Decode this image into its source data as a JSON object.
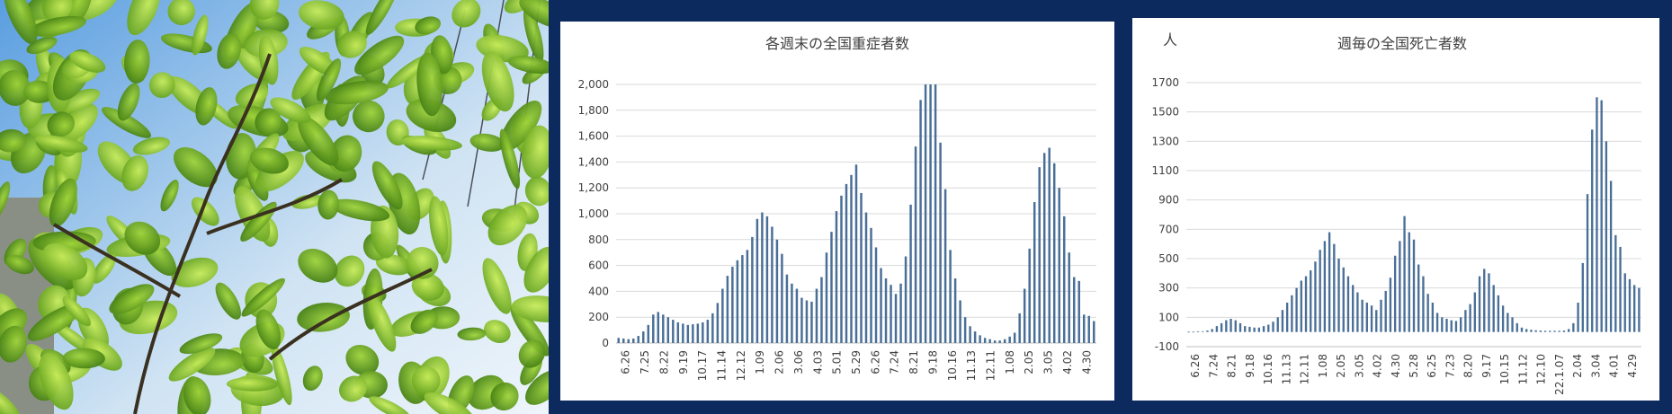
{
  "photo": {
    "label": "green-leaves-photo"
  },
  "chart_data": [
    {
      "type": "bar",
      "title": "各週末の全国重症者数",
      "xlabel": "",
      "ylabel": "",
      "ylim": [
        0,
        2000
      ],
      "yticks": [
        "0",
        "200",
        "400",
        "600",
        "800",
        "1,000",
        "1,200",
        "1,400",
        "1,600",
        "1,800",
        "2,000"
      ],
      "tick_labels": [
        "6.26",
        "7.25",
        "8.22",
        "9.19",
        "10.17",
        "11.14",
        "12.12",
        "1.09",
        "2.06",
        "3.06",
        "4.03",
        "5.01",
        "5.29",
        "6.26",
        "7.24",
        "8.21",
        "9.18",
        "10.16",
        "11.13",
        "12.11",
        "1.08",
        "2.05",
        "3.05",
        "4.02",
        "4.30"
      ],
      "values": [
        40,
        35,
        30,
        35,
        55,
        90,
        140,
        220,
        240,
        220,
        200,
        180,
        160,
        150,
        140,
        145,
        150,
        160,
        180,
        230,
        310,
        420,
        520,
        590,
        640,
        680,
        720,
        820,
        960,
        1010,
        980,
        900,
        800,
        690,
        530,
        460,
        420,
        350,
        330,
        320,
        420,
        510,
        700,
        860,
        1020,
        1140,
        1230,
        1300,
        1380,
        1160,
        1010,
        890,
        740,
        580,
        500,
        450,
        380,
        460,
        670,
        1070,
        1520,
        1880,
        2000,
        2000,
        2000,
        1550,
        1190,
        720,
        500,
        330,
        200,
        130,
        90,
        60,
        40,
        30,
        20,
        20,
        30,
        50,
        80,
        230,
        420,
        730,
        1090,
        1360,
        1470,
        1510,
        1390,
        1200,
        980,
        700,
        510,
        480,
        220,
        210,
        170
      ]
    },
    {
      "type": "bar",
      "title": "週毎の全国死亡者数",
      "unit_label": "人",
      "xlabel": "",
      "ylabel": "",
      "ylim": [
        -100,
        1700
      ],
      "yticks": [
        "-100",
        "100",
        "300",
        "500",
        "700",
        "900",
        "1100",
        "1300",
        "1500",
        "1700"
      ],
      "tick_labels": [
        "6.26",
        "7.24",
        "8.21",
        "9.18",
        "10.16",
        "11.13",
        "12.11",
        "1.08",
        "2.05",
        "3.05",
        "4.02",
        "4.30",
        "5.28",
        "6.25",
        "7.23",
        "8.20",
        "9.17",
        "10.15",
        "11.12",
        "12.10",
        "22.1.07",
        "2.04",
        "3.04",
        "4.01",
        "4.29"
      ],
      "values": [
        2,
        2,
        3,
        5,
        10,
        20,
        40,
        60,
        80,
        90,
        80,
        60,
        40,
        35,
        30,
        30,
        40,
        50,
        70,
        100,
        150,
        200,
        250,
        300,
        350,
        380,
        420,
        480,
        560,
        620,
        680,
        600,
        500,
        440,
        380,
        320,
        270,
        220,
        200,
        180,
        150,
        220,
        280,
        370,
        520,
        620,
        790,
        680,
        630,
        460,
        380,
        260,
        200,
        130,
        100,
        90,
        80,
        75,
        100,
        150,
        190,
        270,
        380,
        430,
        400,
        320,
        250,
        180,
        130,
        100,
        60,
        30,
        20,
        15,
        12,
        10,
        8,
        8,
        8,
        8,
        10,
        20,
        60,
        200,
        470,
        940,
        1380,
        1600,
        1580,
        1300,
        1030,
        660,
        580,
        400,
        360,
        320,
        300
      ]
    }
  ]
}
